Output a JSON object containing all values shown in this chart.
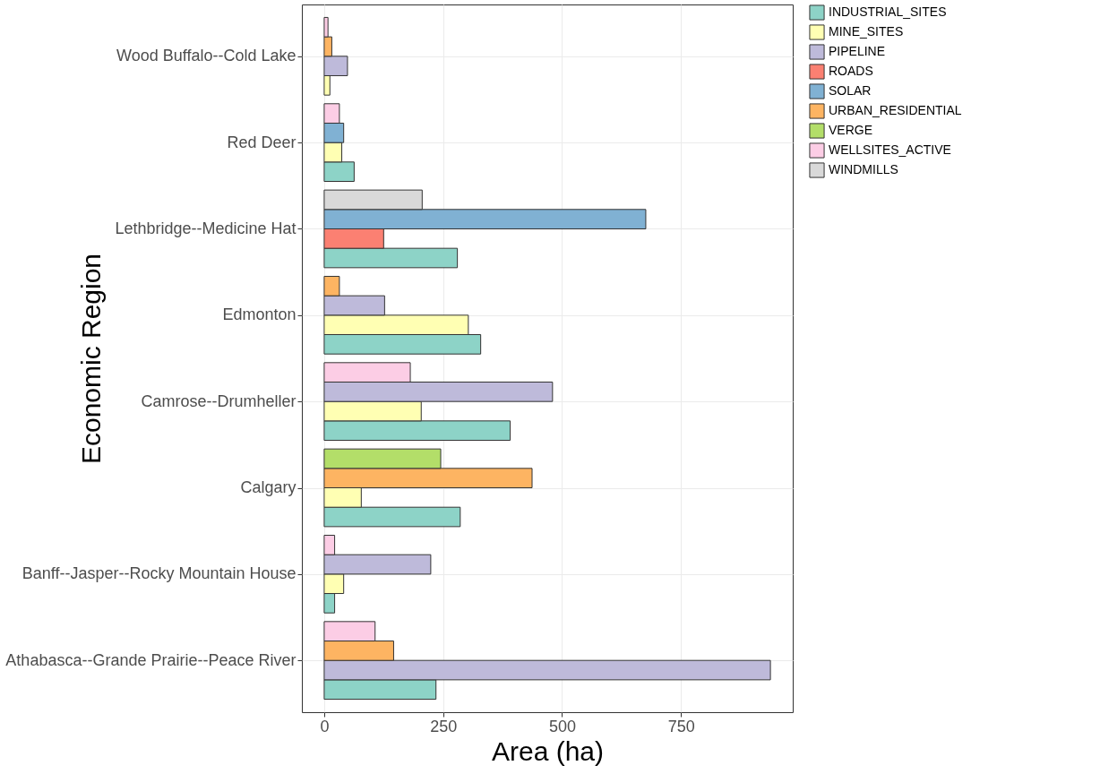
{
  "chart_data": {
    "type": "bar",
    "orientation": "horizontal",
    "xlabel": "Area (ha)",
    "ylabel": "Economic Region",
    "categories": [
      "Wood Buffalo--Cold Lake",
      "Red Deer",
      "Lethbridge--Medicine Hat",
      "Edmonton",
      "Camrose--Drumheller",
      "Calgary",
      "Banff--Jasper--Rocky Mountain House",
      "Athabasca--Grande Prairie--Peace River"
    ],
    "series": [
      {
        "name": "INDUSTRIAL_SITES",
        "color": "#8dd3c7",
        "values": [
          null,
          63,
          280,
          329,
          391,
          286,
          22,
          235
        ]
      },
      {
        "name": "MINE_SITES",
        "color": "#ffffb3",
        "values": [
          12,
          37,
          null,
          303,
          204,
          78,
          41,
          null
        ]
      },
      {
        "name": "PIPELINE",
        "color": "#bebada",
        "values": [
          49,
          null,
          null,
          127,
          480,
          null,
          224,
          938
        ]
      },
      {
        "name": "ROADS",
        "color": "#fb8072",
        "values": [
          null,
          null,
          125,
          null,
          null,
          null,
          null,
          null
        ]
      },
      {
        "name": "SOLAR",
        "color": "#80b1d3",
        "values": [
          null,
          41,
          676,
          null,
          null,
          null,
          null,
          null
        ]
      },
      {
        "name": "URBAN_RESIDENTIAL",
        "color": "#fdb462",
        "values": [
          16,
          null,
          null,
          32,
          null,
          437,
          null,
          146
        ]
      },
      {
        "name": "VERGE",
        "color": "#b3de69",
        "values": [
          null,
          null,
          null,
          null,
          null,
          245,
          null,
          null
        ]
      },
      {
        "name": "WELLSITES_ACTIVE",
        "color": "#fccde5",
        "values": [
          8,
          32,
          null,
          null,
          181,
          null,
          22,
          107
        ]
      },
      {
        "name": "WINDMILLS",
        "color": "#d9d9d9",
        "values": [
          null,
          null,
          206,
          null,
          null,
          null,
          null,
          null
        ]
      }
    ],
    "xlim": [
      -46.9,
      984.9
    ],
    "xticks": [
      0,
      250,
      500,
      750
    ],
    "grid": true,
    "legend": "right"
  }
}
